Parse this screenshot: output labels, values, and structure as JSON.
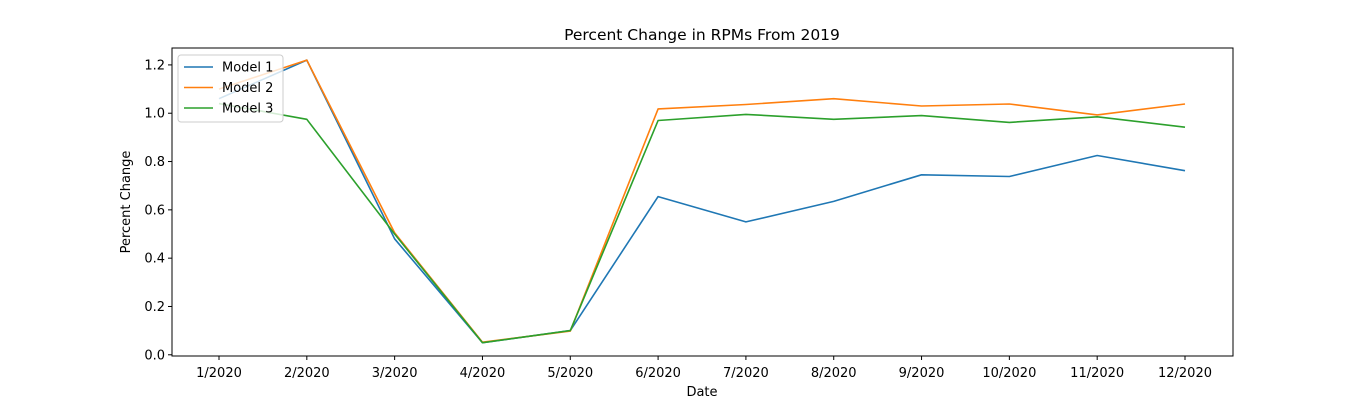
{
  "chart_data": {
    "type": "line",
    "title": "Percent Change in RPMs From 2019",
    "xlabel": "Date",
    "ylabel": "Percent Change",
    "categories": [
      "1/2020",
      "2/2020",
      "3/2020",
      "4/2020",
      "5/2020",
      "6/2020",
      "7/2020",
      "8/2020",
      "9/2020",
      "10/2020",
      "11/2020",
      "12/2020"
    ],
    "ylim": [
      -0.005,
      1.27
    ],
    "yticks": [
      "0.0",
      "0.2",
      "0.4",
      "0.6",
      "0.8",
      "1.0",
      "1.2"
    ],
    "grid": false,
    "legend_position": "top-left",
    "series": [
      {
        "name": "Model 1",
        "color": "#1f77b4",
        "values": [
          1.06,
          1.22,
          0.48,
          0.05,
          0.1,
          0.655,
          0.55,
          0.635,
          0.745,
          0.738,
          0.825,
          0.762
        ]
      },
      {
        "name": "Model 2",
        "color": "#ff7f0e",
        "values": [
          1.1,
          1.22,
          0.505,
          0.052,
          0.098,
          1.018,
          1.036,
          1.06,
          1.03,
          1.038,
          0.993,
          1.038
        ]
      },
      {
        "name": "Model 3",
        "color": "#2ca02c",
        "values": [
          1.04,
          0.975,
          0.5,
          0.05,
          0.1,
          0.97,
          0.995,
          0.975,
          0.99,
          0.962,
          0.985,
          0.942
        ]
      }
    ]
  }
}
